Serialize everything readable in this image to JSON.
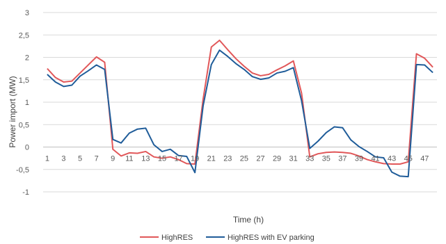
{
  "chart_data": {
    "type": "line",
    "xlabel": "Time (h)",
    "ylabel": "Power import (MW)",
    "ylim": [
      -1,
      3
    ],
    "yticks": [
      -1,
      -0.5,
      0,
      0.5,
      1,
      1.5,
      2,
      2.5,
      3
    ],
    "ytick_labels": [
      "-1",
      "-0,5",
      "0",
      "0,5",
      "1",
      "1,5",
      "2",
      "2,5",
      "3"
    ],
    "xticks": [
      1,
      3,
      5,
      7,
      9,
      11,
      13,
      15,
      17,
      19,
      21,
      23,
      25,
      27,
      29,
      31,
      33,
      35,
      37,
      39,
      41,
      43,
      45,
      47
    ],
    "x": [
      1,
      2,
      3,
      4,
      5,
      6,
      7,
      8,
      9,
      10,
      11,
      12,
      13,
      14,
      15,
      16,
      17,
      18,
      19,
      20,
      21,
      22,
      23,
      24,
      25,
      26,
      27,
      28,
      29,
      30,
      31,
      32,
      33,
      34,
      35,
      36,
      37,
      38,
      39,
      40,
      41,
      42,
      43,
      44,
      45,
      46,
      47,
      48
    ],
    "grid": "horizontal",
    "legend_position": "bottom",
    "series": [
      {
        "name": "HighRES",
        "color": "#E15759",
        "values": [
          1.75,
          1.55,
          1.45,
          1.47,
          1.65,
          1.83,
          2.01,
          1.89,
          -0.05,
          -0.2,
          -0.13,
          -0.14,
          -0.1,
          -0.22,
          -0.25,
          -0.22,
          -0.28,
          -0.37,
          -0.38,
          1.07,
          2.23,
          2.38,
          2.17,
          1.97,
          1.8,
          1.65,
          1.59,
          1.62,
          1.72,
          1.81,
          1.92,
          1.2,
          -0.22,
          -0.15,
          -0.12,
          -0.11,
          -0.12,
          -0.14,
          -0.2,
          -0.28,
          -0.33,
          -0.37,
          -0.38,
          -0.38,
          -0.33,
          2.08,
          1.98,
          1.78
        ]
      },
      {
        "name": "HighRES with EV parking",
        "color": "#1F5C99",
        "values": [
          1.62,
          1.45,
          1.35,
          1.38,
          1.58,
          1.7,
          1.83,
          1.73,
          0.17,
          0.09,
          0.31,
          0.4,
          0.42,
          0.05,
          -0.1,
          -0.05,
          -0.19,
          -0.21,
          -0.57,
          0.92,
          1.84,
          2.16,
          2.02,
          1.86,
          1.73,
          1.57,
          1.51,
          1.54,
          1.65,
          1.69,
          1.77,
          1.03,
          -0.03,
          0.13,
          0.32,
          0.45,
          0.43,
          0.16,
          0.01,
          -0.1,
          -0.22,
          -0.24,
          -0.56,
          -0.65,
          -0.66,
          1.84,
          1.83,
          1.66
        ]
      }
    ]
  }
}
